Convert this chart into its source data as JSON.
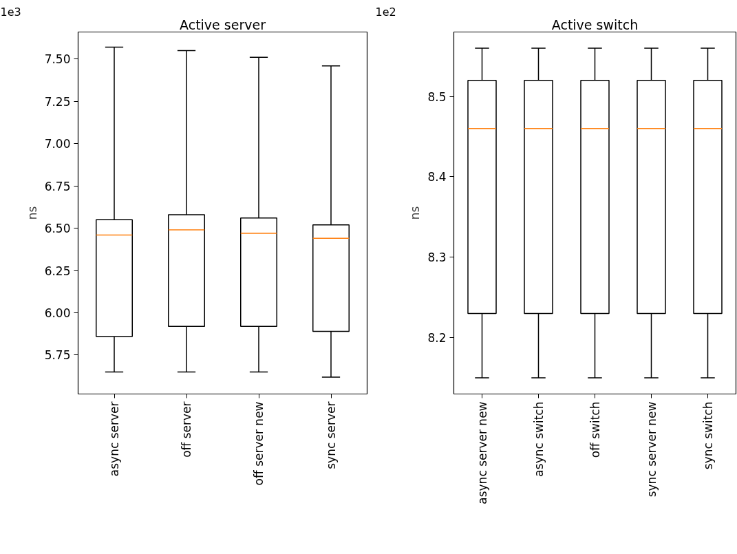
{
  "chart_data": [
    {
      "type": "box",
      "title": "Active server",
      "ylabel": "ns",
      "annotations": [
        "1e3"
      ],
      "color": "#000000",
      "grid": false,
      "categories": [
        "async server",
        "off server",
        "off server new",
        "sync server"
      ],
      "boxes": [
        {
          "low": 5.65,
          "q1": 5.86,
          "median": 6.46,
          "q3": 6.55,
          "high": 7.57
        },
        {
          "low": 5.65,
          "q1": 5.92,
          "median": 6.49,
          "q3": 6.58,
          "high": 7.55
        },
        {
          "low": 5.65,
          "q1": 5.92,
          "median": 6.47,
          "q3": 6.56,
          "high": 7.51
        },
        {
          "low": 5.62,
          "q1": 5.89,
          "median": 6.44,
          "q3": 6.52,
          "high": 7.46
        }
      ],
      "ylim": [
        5.52,
        7.66
      ],
      "yticks": [
        {
          "value": 5.75,
          "label": "5.75"
        },
        {
          "value": 6.0,
          "label": "6.00"
        },
        {
          "value": 6.25,
          "label": "6.25"
        },
        {
          "value": 6.5,
          "label": "6.50"
        },
        {
          "value": 6.75,
          "label": "6.75"
        },
        {
          "value": 7.0,
          "label": "7.00"
        },
        {
          "value": 7.25,
          "label": "7.25"
        },
        {
          "value": 7.5,
          "label": "7.50"
        }
      ]
    },
    {
      "type": "box",
      "title": "Active switch",
      "ylabel": "ns",
      "annotations": [
        "1e2"
      ],
      "color": "#000000",
      "grid": false,
      "categories": [
        "async server new",
        "async switch",
        "off switch",
        "sync server new",
        "sync switch"
      ],
      "boxes": [
        {
          "low": 8.15,
          "q1": 8.23,
          "median": 8.46,
          "q3": 8.52,
          "high": 8.56
        },
        {
          "low": 8.15,
          "q1": 8.23,
          "median": 8.46,
          "q3": 8.52,
          "high": 8.56
        },
        {
          "low": 8.15,
          "q1": 8.23,
          "median": 8.46,
          "q3": 8.52,
          "high": 8.56
        },
        {
          "low": 8.15,
          "q1": 8.23,
          "median": 8.46,
          "q3": 8.52,
          "high": 8.56
        },
        {
          "low": 8.15,
          "q1": 8.23,
          "median": 8.46,
          "q3": 8.52,
          "high": 8.56
        }
      ],
      "ylim": [
        8.13,
        8.58
      ],
      "yticks": [
        8.2,
        8.3,
        8.4,
        8.5
      ]
    }
  ]
}
